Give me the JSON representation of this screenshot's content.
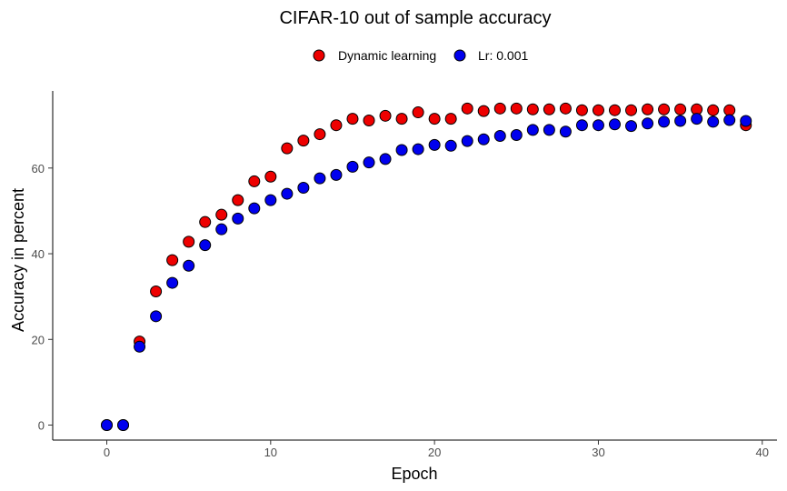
{
  "chart_data": {
    "type": "scatter",
    "title": "CIFAR-10 out of sample accuracy",
    "xlabel": "Epoch",
    "ylabel": "Accuracy in percent",
    "xlim": [
      -3.3,
      40.9
    ],
    "ylim": [
      -3.5,
      78
    ],
    "xticks": [
      0,
      10,
      20,
      30,
      40
    ],
    "yticks": [
      0,
      20,
      40,
      60
    ],
    "grid": false,
    "legend_position": "top",
    "series": [
      {
        "name": "Dynamic learning",
        "color": "#ee0000",
        "x": [
          0,
          1,
          2,
          3,
          4,
          5,
          6,
          7,
          8,
          9,
          10,
          11,
          12,
          13,
          14,
          15,
          16,
          17,
          18,
          19,
          20,
          21,
          22,
          23,
          24,
          25,
          26,
          27,
          28,
          29,
          30,
          31,
          32,
          33,
          34,
          35,
          36,
          37,
          38,
          39
        ],
        "y": [
          0,
          0,
          19.5,
          31.2,
          38.5,
          42.8,
          47.4,
          49.1,
          52.5,
          56.9,
          58.0,
          64.6,
          66.4,
          67.9,
          70.0,
          71.5,
          71.1,
          72.2,
          71.5,
          73.0,
          71.5,
          71.5,
          73.9,
          73.3,
          73.9,
          73.9,
          73.7,
          73.7,
          73.9,
          73.5,
          73.5,
          73.5,
          73.5,
          73.7,
          73.7,
          73.7,
          73.7,
          73.5,
          73.5,
          70.0
        ]
      },
      {
        "name": "Lr: 0.001",
        "color": "#0000ee",
        "x": [
          0,
          1,
          2,
          3,
          4,
          5,
          6,
          7,
          8,
          9,
          10,
          11,
          12,
          13,
          14,
          15,
          16,
          17,
          18,
          19,
          20,
          21,
          22,
          23,
          24,
          25,
          26,
          27,
          28,
          29,
          30,
          31,
          32,
          33,
          34,
          35,
          36,
          37,
          38,
          39
        ],
        "y": [
          0,
          0,
          18.3,
          25.4,
          33.2,
          37.2,
          42.0,
          45.7,
          48.2,
          50.6,
          52.5,
          54.0,
          55.4,
          57.6,
          58.4,
          60.3,
          61.3,
          62.1,
          64.2,
          64.4,
          65.4,
          65.2,
          66.3,
          66.7,
          67.5,
          67.7,
          68.9,
          68.9,
          68.5,
          70.0,
          70.0,
          70.2,
          69.8,
          70.4,
          70.8,
          71.0,
          71.5,
          70.8,
          71.2,
          71.0
        ]
      }
    ]
  }
}
